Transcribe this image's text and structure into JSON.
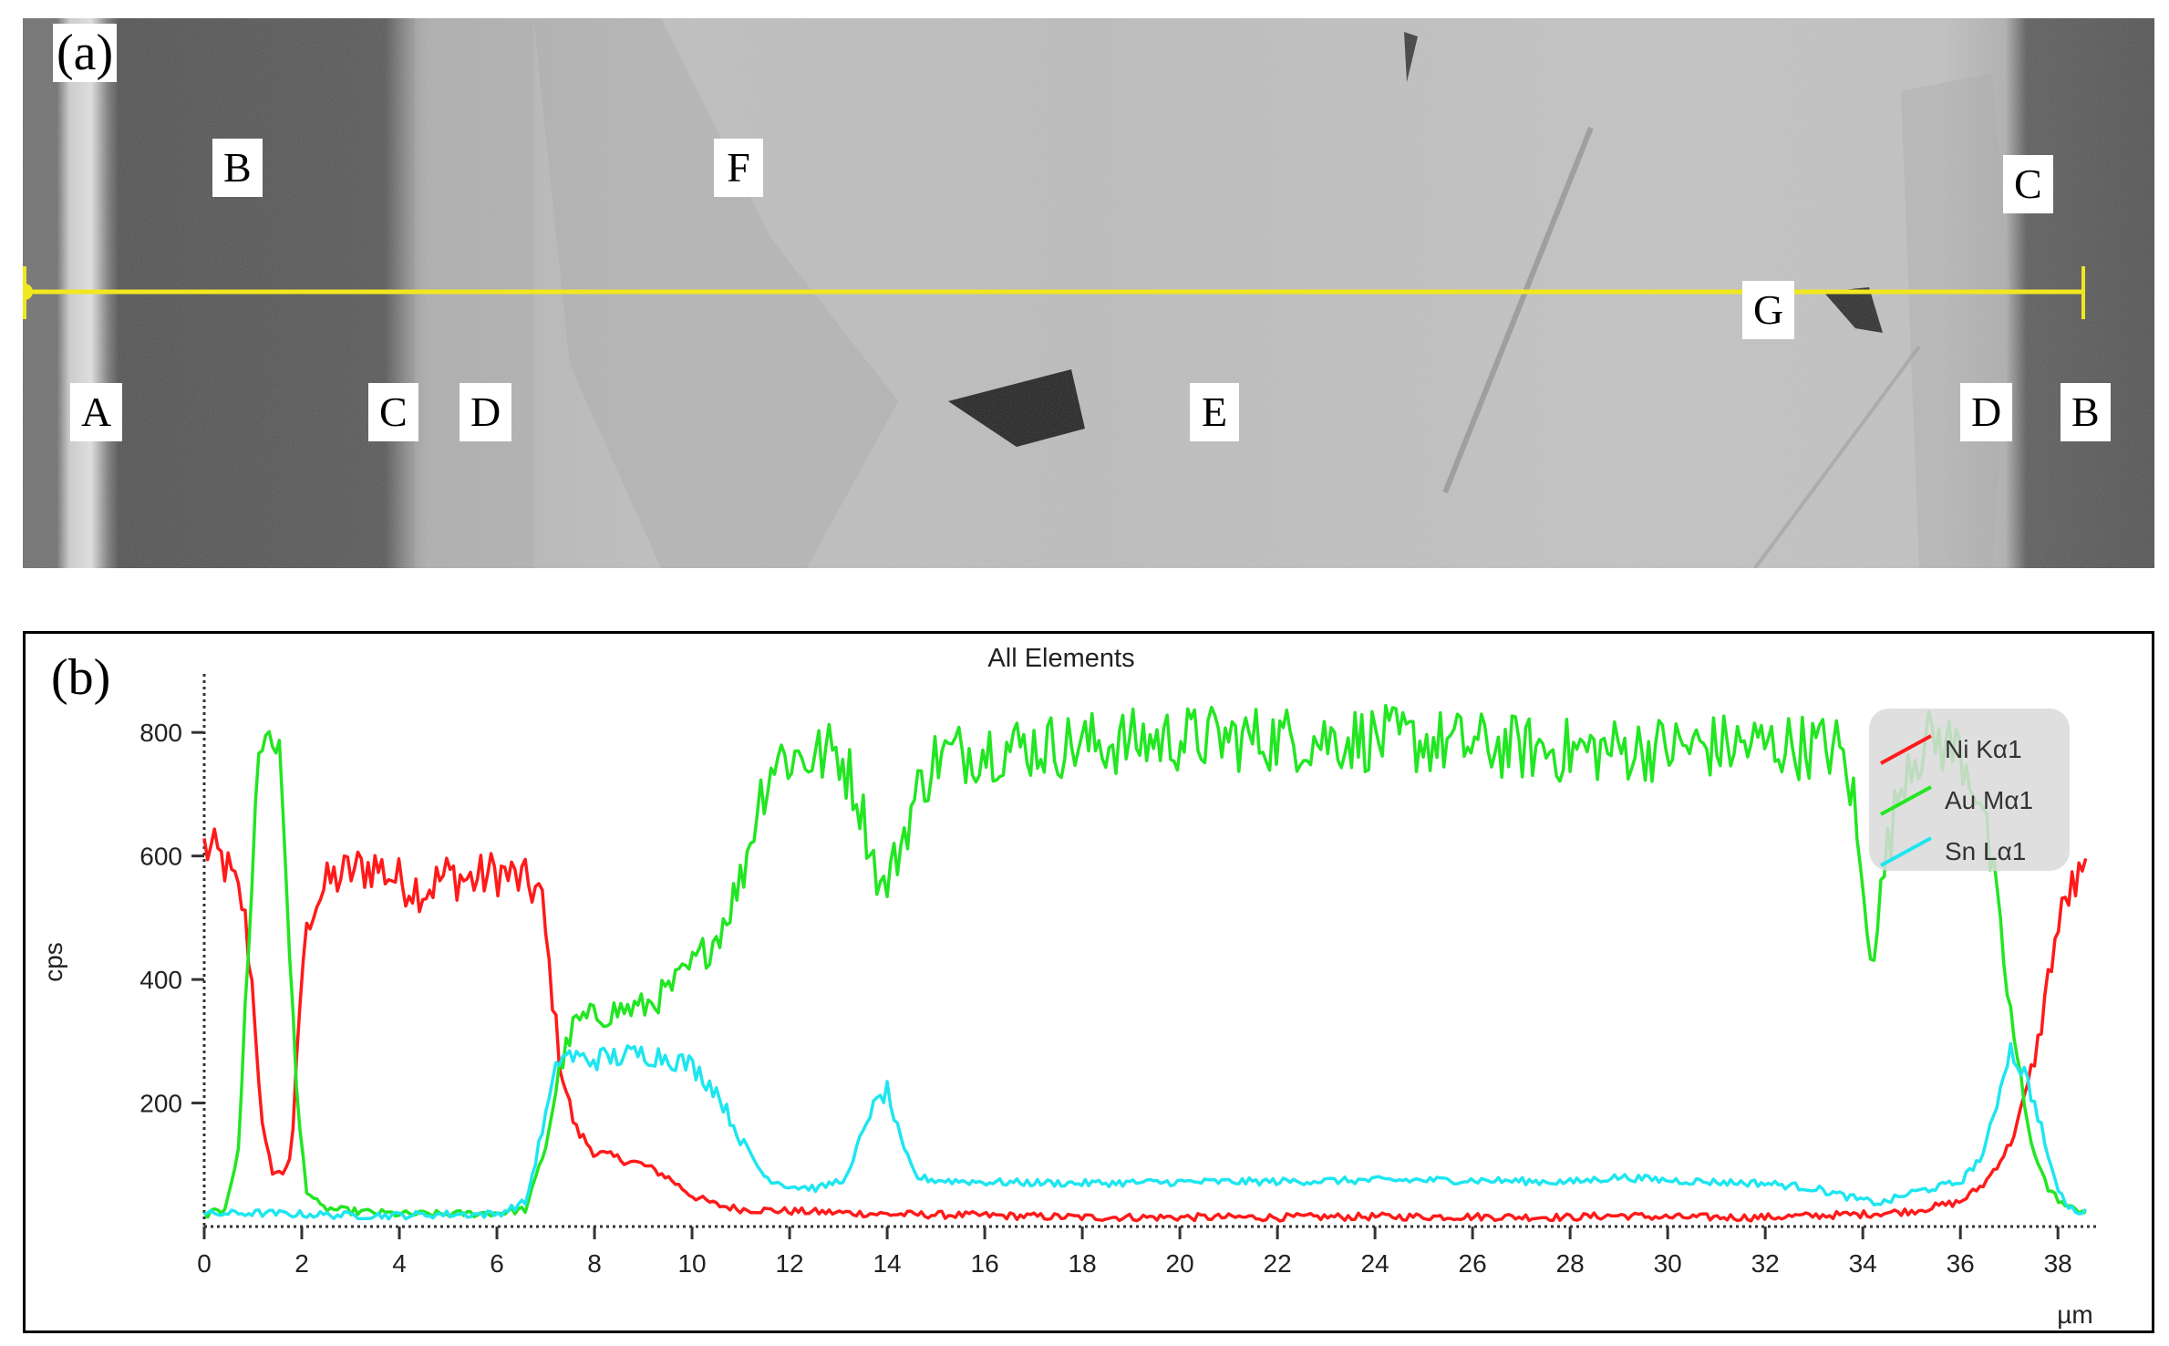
{
  "panel_a": {
    "tag": "(a)",
    "labels": [
      {
        "id": "A",
        "text": "A"
      },
      {
        "id": "B-left",
        "text": "B"
      },
      {
        "id": "C-left",
        "text": "C"
      },
      {
        "id": "D-left",
        "text": "D"
      },
      {
        "id": "F",
        "text": "F"
      },
      {
        "id": "E",
        "text": "E"
      },
      {
        "id": "G",
        "text": "G"
      },
      {
        "id": "C-right",
        "text": "C"
      },
      {
        "id": "D-right",
        "text": "D"
      },
      {
        "id": "B-right",
        "text": "B"
      }
    ],
    "scan_line_color": "#f0e81e"
  },
  "panel_b": {
    "tag": "(b)"
  },
  "chart_data": {
    "type": "line",
    "title": "All Elements",
    "xlabel": "µm",
    "ylabel": "cps",
    "xlim": [
      0,
      38.8
    ],
    "ylim": [
      0,
      880
    ],
    "xticks": [
      0,
      2,
      4,
      6,
      8,
      10,
      12,
      14,
      16,
      18,
      20,
      22,
      24,
      26,
      28,
      30,
      32,
      34,
      36,
      38
    ],
    "yticks": [
      200,
      400,
      600,
      800
    ],
    "grid": false,
    "legend": "top-right",
    "series": [
      {
        "name": "Ni Kα1",
        "color": "#ff1a1a",
        "points": [
          [
            0,
            615
          ],
          [
            0.4,
            590
          ],
          [
            0.8,
            520
          ],
          [
            1.0,
            380
          ],
          [
            1.2,
            150
          ],
          [
            1.4,
            90
          ],
          [
            1.6,
            85
          ],
          [
            1.8,
            120
          ],
          [
            2.0,
            420
          ],
          [
            2.2,
            520
          ],
          [
            2.6,
            560
          ],
          [
            3.0,
            575
          ],
          [
            3.5,
            585
          ],
          [
            4.0,
            560
          ],
          [
            4.5,
            545
          ],
          [
            5.0,
            570
          ],
          [
            5.5,
            560
          ],
          [
            6.0,
            575
          ],
          [
            6.5,
            560
          ],
          [
            6.9,
            540
          ],
          [
            7.1,
            400
          ],
          [
            7.3,
            260
          ],
          [
            7.6,
            160
          ],
          [
            8.0,
            120
          ],
          [
            8.5,
            110
          ],
          [
            9.0,
            100
          ],
          [
            9.5,
            80
          ],
          [
            10.0,
            50
          ],
          [
            10.5,
            35
          ],
          [
            11.0,
            28
          ],
          [
            12,
            25
          ],
          [
            14,
            20
          ],
          [
            16,
            18
          ],
          [
            18,
            15
          ],
          [
            20,
            15
          ],
          [
            22,
            15
          ],
          [
            24,
            16
          ],
          [
            26,
            16
          ],
          [
            28,
            15
          ],
          [
            29,
            18
          ],
          [
            30,
            15
          ],
          [
            32,
            15
          ],
          [
            34,
            20
          ],
          [
            35,
            25
          ],
          [
            36,
            40
          ],
          [
            36.5,
            70
          ],
          [
            37,
            130
          ],
          [
            37.3,
            200
          ],
          [
            37.6,
            300
          ],
          [
            37.9,
            450
          ],
          [
            38.2,
            540
          ],
          [
            38.6,
            570
          ]
        ]
      },
      {
        "name": "Au Mα1",
        "color": "#22e622",
        "points": [
          [
            0,
            20
          ],
          [
            0.4,
            25
          ],
          [
            0.7,
            120
          ],
          [
            0.9,
            450
          ],
          [
            1.1,
            750
          ],
          [
            1.3,
            815
          ],
          [
            1.5,
            790
          ],
          [
            1.7,
            550
          ],
          [
            1.9,
            200
          ],
          [
            2.1,
            60
          ],
          [
            2.4,
            30
          ],
          [
            3,
            25
          ],
          [
            4,
            20
          ],
          [
            5,
            20
          ],
          [
            6,
            22
          ],
          [
            6.6,
            28
          ],
          [
            7.0,
            130
          ],
          [
            7.3,
            260
          ],
          [
            7.6,
            330
          ],
          [
            8,
            340
          ],
          [
            8.5,
            350
          ],
          [
            9,
            355
          ],
          [
            9.5,
            380
          ],
          [
            10,
            420
          ],
          [
            10.5,
            470
          ],
          [
            11,
            560
          ],
          [
            11.4,
            700
          ],
          [
            11.7,
            760
          ],
          [
            12.5,
            760
          ],
          [
            13.0,
            770
          ],
          [
            13.4,
            700
          ],
          [
            13.7,
            600
          ],
          [
            13.9,
            540
          ],
          [
            14.2,
            600
          ],
          [
            14.6,
            700
          ],
          [
            15,
            760
          ],
          [
            16,
            775
          ],
          [
            18,
            780
          ],
          [
            20,
            790
          ],
          [
            22,
            790
          ],
          [
            24,
            790
          ],
          [
            26,
            780
          ],
          [
            28,
            770
          ],
          [
            30,
            775
          ],
          [
            32,
            780
          ],
          [
            33.5,
            775
          ],
          [
            33.8,
            700
          ],
          [
            34.0,
            530
          ],
          [
            34.2,
            440
          ],
          [
            34.5,
            610
          ],
          [
            34.9,
            760
          ],
          [
            35.5,
            790
          ],
          [
            36,
            770
          ],
          [
            36.4,
            700
          ],
          [
            36.7,
            550
          ],
          [
            37.0,
            360
          ],
          [
            37.4,
            150
          ],
          [
            37.8,
            60
          ],
          [
            38.2,
            30
          ],
          [
            38.6,
            25
          ]
        ]
      },
      {
        "name": "Sn Lα1",
        "color": "#1ee6f0",
        "points": [
          [
            0,
            20
          ],
          [
            1,
            22
          ],
          [
            2,
            20
          ],
          [
            3,
            18
          ],
          [
            4,
            18
          ],
          [
            5,
            20
          ],
          [
            6,
            20
          ],
          [
            6.6,
            40
          ],
          [
            7.0,
            180
          ],
          [
            7.3,
            280
          ],
          [
            7.8,
            270
          ],
          [
            8.5,
            275
          ],
          [
            9,
            280
          ],
          [
            9.5,
            275
          ],
          [
            10,
            260
          ],
          [
            10.5,
            220
          ],
          [
            11,
            140
          ],
          [
            11.5,
            80
          ],
          [
            12,
            65
          ],
          [
            12.6,
            62
          ],
          [
            13.2,
            80
          ],
          [
            13.6,
            180
          ],
          [
            14.0,
            220
          ],
          [
            14.3,
            130
          ],
          [
            14.6,
            80
          ],
          [
            15,
            75
          ],
          [
            16,
            72
          ],
          [
            18,
            70
          ],
          [
            20,
            72
          ],
          [
            22,
            73
          ],
          [
            24,
            75
          ],
          [
            26,
            75
          ],
          [
            28,
            72
          ],
          [
            29,
            80
          ],
          [
            30,
            75
          ],
          [
            31,
            72
          ],
          [
            32,
            70
          ],
          [
            33,
            62
          ],
          [
            34,
            42
          ],
          [
            34.4,
            38
          ],
          [
            35,
            55
          ],
          [
            36,
            72
          ],
          [
            36.5,
            120
          ],
          [
            36.8,
            220
          ],
          [
            37.0,
            290
          ],
          [
            37.3,
            250
          ],
          [
            37.6,
            180
          ],
          [
            37.9,
            80
          ],
          [
            38.2,
            30
          ],
          [
            38.6,
            22
          ]
        ]
      }
    ]
  }
}
